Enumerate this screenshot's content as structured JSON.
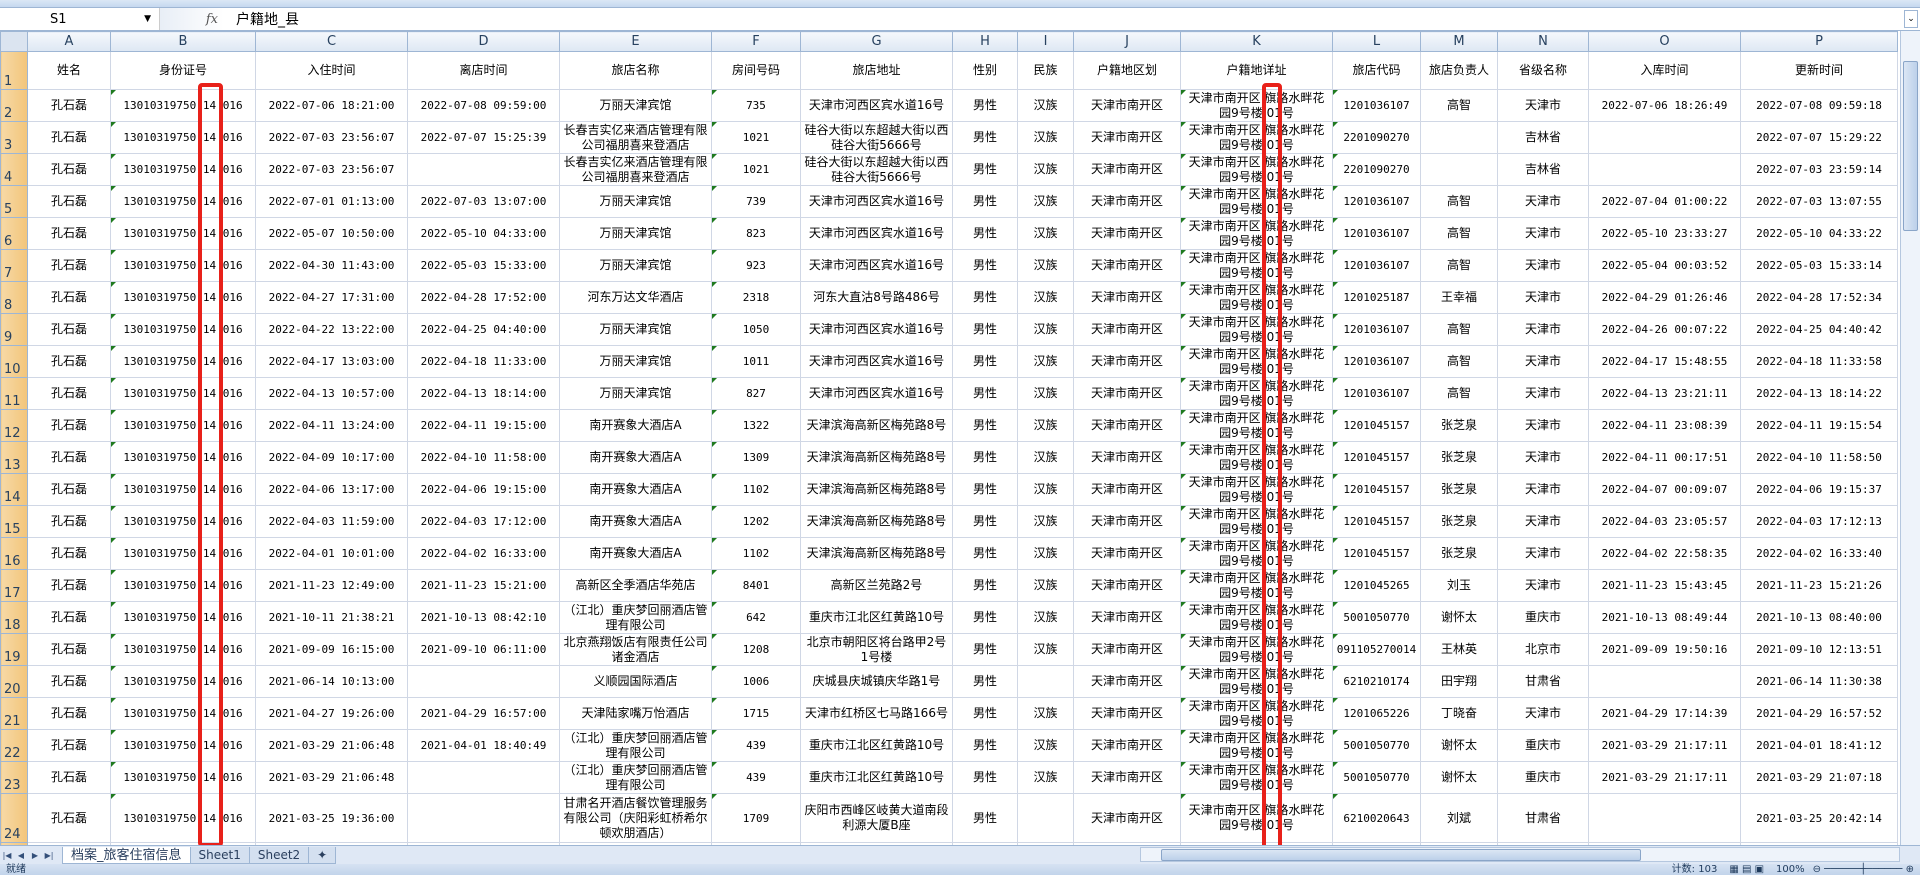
{
  "formula_bar": {
    "cell_ref": "S1",
    "fx_label": "fx",
    "value": "户籍地_县"
  },
  "columns": [
    "A",
    "B",
    "C",
    "D",
    "E",
    "F",
    "G",
    "H",
    "I",
    "J",
    "K",
    "L",
    "M",
    "N",
    "O",
    "P"
  ],
  "headers": [
    "姓名",
    "身份证号",
    "入住时间",
    "离店时间",
    "旅店名称",
    "房间号码",
    "旅店地址",
    "性别",
    "民族",
    "户籍地区划",
    "户籍地详址",
    "旅店代码",
    "旅店负责人",
    "省级名称",
    "入库时间",
    "更新时间"
  ],
  "rows": [
    [
      "孔石磊",
      "13010319750 14 016",
      "2022-07-06 18:21:00",
      "2022-07-08 09:59:00",
      "万丽天津宾馆",
      "735",
      "天津市河西区宾水道16号",
      "男性",
      "汉族",
      "天津市南开区",
      "天津市南开区 旗路水畔花园9号楼 01号",
      "1201036107",
      "高智",
      "天津市",
      "2022-07-06 18:26:49",
      "2022-07-08 09:59:18"
    ],
    [
      "孔石磊",
      "13010319750 14 016",
      "2022-07-03 23:56:07",
      "2022-07-07 15:25:39",
      "长春吉实亿来酒店管理有限公司福朋喜来登酒店",
      "1021",
      "硅谷大街以东超越大街以西硅谷大街5666号",
      "男性",
      "汉族",
      "天津市南开区",
      "天津市南开区 旗路水畔花园9号楼 01号",
      "2201090270",
      "",
      "吉林省",
      "",
      "2022-07-07 15:29:22"
    ],
    [
      "孔石磊",
      "13010319750 14 016",
      "2022-07-03 23:56:07",
      "",
      "长春吉实亿来酒店管理有限公司福朋喜来登酒店",
      "1021",
      "硅谷大街以东超越大街以西硅谷大街5666号",
      "男性",
      "汉族",
      "天津市南开区",
      "天津市南开区 旗路水畔花园9号楼 01号",
      "2201090270",
      "",
      "吉林省",
      "",
      "2022-07-03 23:59:14"
    ],
    [
      "孔石磊",
      "13010319750 14 016",
      "2022-07-01 01:13:00",
      "2022-07-03 13:07:00",
      "万丽天津宾馆",
      "739",
      "天津市河西区宾水道16号",
      "男性",
      "汉族",
      "天津市南开区",
      "天津市南开区 旗路水畔花园9号楼 01号",
      "1201036107",
      "高智",
      "天津市",
      "2022-07-04 01:00:22",
      "2022-07-03 13:07:55"
    ],
    [
      "孔石磊",
      "13010319750 14 016",
      "2022-05-07 10:50:00",
      "2022-05-10 04:33:00",
      "万丽天津宾馆",
      "823",
      "天津市河西区宾水道16号",
      "男性",
      "汉族",
      "天津市南开区",
      "天津市南开区 旗路水畔花园9号楼 01号",
      "1201036107",
      "高智",
      "天津市",
      "2022-05-10 23:33:27",
      "2022-05-10 04:33:22"
    ],
    [
      "孔石磊",
      "13010319750 14 016",
      "2022-04-30 11:43:00",
      "2022-05-03 15:33:00",
      "万丽天津宾馆",
      "923",
      "天津市河西区宾水道16号",
      "男性",
      "汉族",
      "天津市南开区",
      "天津市南开区 旗路水畔花园9号楼 01号",
      "1201036107",
      "高智",
      "天津市",
      "2022-05-04 00:03:52",
      "2022-05-03 15:33:14"
    ],
    [
      "孔石磊",
      "13010319750 14 016",
      "2022-04-27 17:31:00",
      "2022-04-28 17:52:00",
      "河东万达文华酒店",
      "2318",
      "河东大直沽8号路486号",
      "男性",
      "汉族",
      "天津市南开区",
      "天津市南开区 旗路水畔花园9号楼 01号",
      "1201025187",
      "王幸福",
      "天津市",
      "2022-04-29 01:26:46",
      "2022-04-28 17:52:34"
    ],
    [
      "孔石磊",
      "13010319750 14 016",
      "2022-04-22 13:22:00",
      "2022-04-25 04:40:00",
      "万丽天津宾馆",
      "1050",
      "天津市河西区宾水道16号",
      "男性",
      "汉族",
      "天津市南开区",
      "天津市南开区 旗路水畔花园9号楼 01号",
      "1201036107",
      "高智",
      "天津市",
      "2022-04-26 00:07:22",
      "2022-04-25 04:40:42"
    ],
    [
      "孔石磊",
      "13010319750 14 016",
      "2022-04-17 13:03:00",
      "2022-04-18 11:33:00",
      "万丽天津宾馆",
      "1011",
      "天津市河西区宾水道16号",
      "男性",
      "汉族",
      "天津市南开区",
      "天津市南开区 旗路水畔花园9号楼 01号",
      "1201036107",
      "高智",
      "天津市",
      "2022-04-17 15:48:55",
      "2022-04-18 11:33:58"
    ],
    [
      "孔石磊",
      "13010319750 14 016",
      "2022-04-13 10:57:00",
      "2022-04-13 18:14:00",
      "万丽天津宾馆",
      "827",
      "天津市河西区宾水道16号",
      "男性",
      "汉族",
      "天津市南开区",
      "天津市南开区 旗路水畔花园9号楼 01号",
      "1201036107",
      "高智",
      "天津市",
      "2022-04-13 23:21:11",
      "2022-04-13 18:14:22"
    ],
    [
      "孔石磊",
      "13010319750 14 016",
      "2022-04-11 13:24:00",
      "2022-04-11 19:15:00",
      "南开赛象大酒店A",
      "1322",
      "天津滨海高新区梅苑路8号",
      "男性",
      "汉族",
      "天津市南开区",
      "天津市南开区 旗路水畔花园9号楼 01号",
      "1201045157",
      "张芝泉",
      "天津市",
      "2022-04-11 23:08:39",
      "2022-04-11 19:15:54"
    ],
    [
      "孔石磊",
      "13010319750 14 016",
      "2022-04-09 10:17:00",
      "2022-04-10 11:58:00",
      "南开赛象大酒店A",
      "1309",
      "天津滨海高新区梅苑路8号",
      "男性",
      "汉族",
      "天津市南开区",
      "天津市南开区 旗路水畔花园9号楼 01号",
      "1201045157",
      "张芝泉",
      "天津市",
      "2022-04-11 00:17:51",
      "2022-04-10 11:58:50"
    ],
    [
      "孔石磊",
      "13010319750 14 016",
      "2022-04-06 13:17:00",
      "2022-04-06 19:15:00",
      "南开赛象大酒店A",
      "1102",
      "天津滨海高新区梅苑路8号",
      "男性",
      "汉族",
      "天津市南开区",
      "天津市南开区 旗路水畔花园9号楼 01号",
      "1201045157",
      "张芝泉",
      "天津市",
      "2022-04-07 00:09:07",
      "2022-04-06 19:15:37"
    ],
    [
      "孔石磊",
      "13010319750 14 016",
      "2022-04-03 11:59:00",
      "2022-04-03 17:12:00",
      "南开赛象大酒店A",
      "1202",
      "天津滨海高新区梅苑路8号",
      "男性",
      "汉族",
      "天津市南开区",
      "天津市南开区 旗路水畔花园9号楼 01号",
      "1201045157",
      "张芝泉",
      "天津市",
      "2022-04-03 23:05:57",
      "2022-04-03 17:12:13"
    ],
    [
      "孔石磊",
      "13010319750 14 016",
      "2022-04-01 10:01:00",
      "2022-04-02 16:33:00",
      "南开赛象大酒店A",
      "1102",
      "天津滨海高新区梅苑路8号",
      "男性",
      "汉族",
      "天津市南开区",
      "天津市南开区 旗路水畔花园9号楼 01号",
      "1201045157",
      "张芝泉",
      "天津市",
      "2022-04-02 22:58:35",
      "2022-04-02 16:33:40"
    ],
    [
      "孔石磊",
      "13010319750 14 016",
      "2021-11-23 12:49:00",
      "2021-11-23 15:21:00",
      "高新区全季酒店华苑店",
      "8401",
      "高新区兰苑路2号",
      "男性",
      "汉族",
      "天津市南开区",
      "天津市南开区 旗路水畔花园9号楼 01号",
      "1201045265",
      "刘玉",
      "天津市",
      "2021-11-23 15:43:45",
      "2021-11-23 15:21:26"
    ],
    [
      "孔石磊",
      "13010319750 14 016",
      "2021-10-11 21:38:21",
      "2021-10-13 08:42:10",
      "（江北）重庆梦回丽酒店管理有限公司",
      "642",
      "重庆市江北区红黄路10号",
      "男性",
      "汉族",
      "天津市南开区",
      "天津市南开区 旗路水畔花园9号楼 01号",
      "5001050770",
      "谢怀太",
      "重庆市",
      "2021-10-13 08:49:44",
      "2021-10-13 08:40:00"
    ],
    [
      "孔石磊",
      "13010319750 14 016",
      "2021-09-09 16:15:00",
      "2021-09-10 06:11:00",
      "北京燕翔饭店有限责任公司诸金酒店",
      "1208",
      "北京市朝阳区将台路甲2号1号楼",
      "男性",
      "汉族",
      "天津市南开区",
      "天津市南开区 旗路水畔花园9号楼 01号",
      "091105270014",
      "王林英",
      "北京市",
      "2021-09-09 19:50:16",
      "2021-09-10 12:13:51"
    ],
    [
      "孔石磊",
      "13010319750 14 016",
      "2021-06-14 10:13:00",
      "",
      "义顺园国际酒店",
      "1006",
      "庆城县庆城镇庆华路1号",
      "男性",
      "",
      "天津市南开区",
      "天津市南开区 旗路水畔花园9号楼 01号",
      "6210210174",
      "田宇翔",
      "甘肃省",
      "",
      "2021-06-14 11:30:38"
    ],
    [
      "孔石磊",
      "13010319750 14 016",
      "2021-04-27 19:26:00",
      "2021-04-29 16:57:00",
      "天津陆家嘴万怡酒店",
      "1715",
      "天津市红桥区七马路166号",
      "男性",
      "汉族",
      "天津市南开区",
      "天津市南开区 旗路水畔花园9号楼 01号",
      "1201065226",
      "丁晓奋",
      "天津市",
      "2021-04-29 17:14:39",
      "2021-04-29 16:57:52"
    ],
    [
      "孔石磊",
      "13010319750 14 016",
      "2021-03-29 21:06:48",
      "2021-04-01 18:40:49",
      "（江北）重庆梦回丽酒店管理有限公司",
      "439",
      "重庆市江北区红黄路10号",
      "男性",
      "汉族",
      "天津市南开区",
      "天津市南开区 旗路水畔花园9号楼 01号",
      "5001050770",
      "谢怀太",
      "重庆市",
      "2021-03-29 21:17:11",
      "2021-04-01 18:41:12"
    ],
    [
      "孔石磊",
      "13010319750 14 016",
      "2021-03-29 21:06:48",
      "",
      "（江北）重庆梦回丽酒店管理有限公司",
      "439",
      "重庆市江北区红黄路10号",
      "男性",
      "汉族",
      "天津市南开区",
      "天津市南开区 旗路水畔花园9号楼 01号",
      "5001050770",
      "谢怀太",
      "重庆市",
      "2021-03-29 21:17:11",
      "2021-03-29 21:07:18"
    ],
    [
      "孔石磊",
      "13010319750 14 016",
      "2021-03-25 19:36:00",
      "",
      "甘肃名开酒店餐饮管理服务有限公司（庆阳彩虹桥希尔顿欢朋酒店）",
      "1709",
      "庆阳市西峰区岐黄大道南段利源大厦B座",
      "男性",
      "",
      "天津市南开区",
      "天津市南开区 旗路水畔花园9号楼 01号",
      "6210020643",
      "刘斌",
      "甘肃省",
      "",
      "2021-03-25 20:42:14"
    ]
  ],
  "sheet_tabs": [
    "档案_旅客住宿信息",
    "Sheet1",
    "Sheet2"
  ],
  "active_sheet": "档案_旅客住宿信息",
  "status": {
    "ready": "就绪",
    "count": "计数: 103",
    "zoom": "100%"
  },
  "colors": {
    "highlight_box": "#e8211a",
    "row_header": "#f3c57a"
  }
}
